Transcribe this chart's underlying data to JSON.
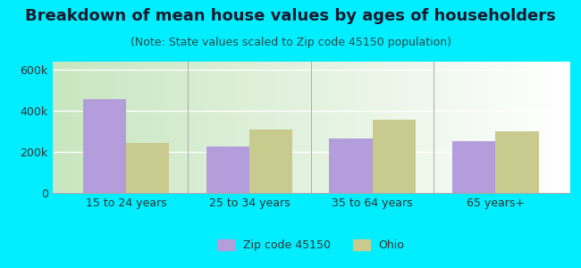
{
  "title": "Breakdown of mean house values by ages of householders",
  "subtitle": "(Note: State values scaled to Zip code 45150 population)",
  "categories": [
    "15 to 24 years",
    "25 to 34 years",
    "35 to 64 years",
    "65 years+"
  ],
  "zip_values": [
    455000,
    228000,
    265000,
    252000
  ],
  "ohio_values": [
    242000,
    308000,
    355000,
    300000
  ],
  "zip_color": "#b39ddb",
  "ohio_color": "#c8ca8e",
  "background_outer": "#00eeff",
  "background_inner_left": "#c8e6c0",
  "background_inner_right": "#ffffff",
  "ylim": [
    0,
    640000
  ],
  "yticks": [
    0,
    200000,
    400000,
    600000
  ],
  "ytick_labels": [
    "0",
    "200k",
    "400k",
    "600k"
  ],
  "legend_zip_label": "Zip code 45150",
  "legend_ohio_label": "Ohio",
  "bar_width": 0.35,
  "title_fontsize": 13,
  "subtitle_fontsize": 9,
  "tick_fontsize": 9,
  "legend_fontsize": 9
}
